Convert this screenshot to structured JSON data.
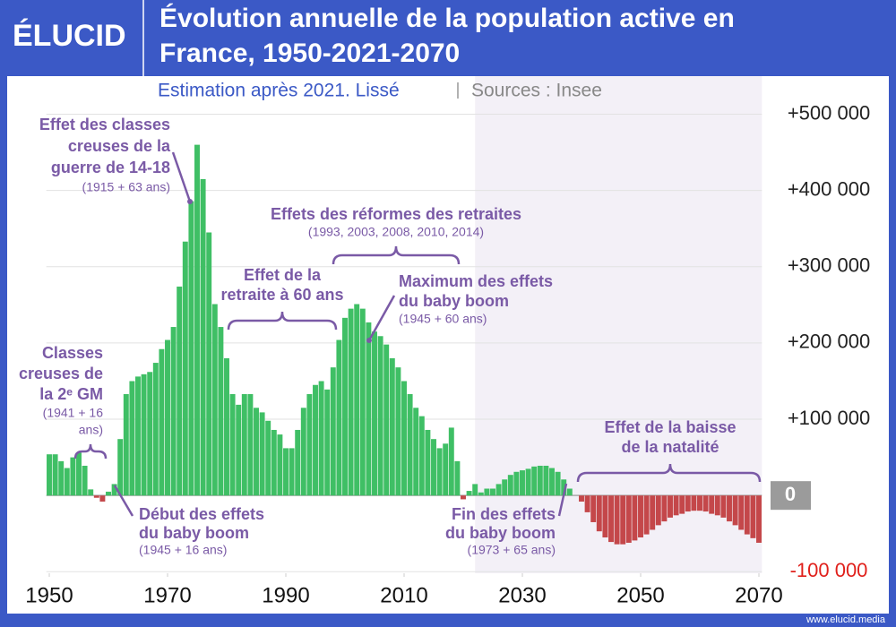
{
  "logo": "ÉLUCID",
  "footer": "www.elucid.media",
  "chart_data": {
    "type": "bar",
    "title_lines": [
      "Évolution annuelle de la population active en",
      "France, 1950-2021-2070"
    ],
    "subtitle": "Estimation après 2021. Lissé",
    "source": "Sources : Insee",
    "x": [
      1950,
      1951,
      1952,
      1953,
      1954,
      1955,
      1956,
      1957,
      1958,
      1959,
      1960,
      1961,
      1962,
      1963,
      1964,
      1965,
      1966,
      1967,
      1968,
      1969,
      1970,
      1971,
      1972,
      1973,
      1974,
      1975,
      1976,
      1977,
      1978,
      1979,
      1980,
      1981,
      1982,
      1983,
      1984,
      1985,
      1986,
      1987,
      1988,
      1989,
      1990,
      1991,
      1992,
      1993,
      1994,
      1995,
      1996,
      1997,
      1998,
      1999,
      2000,
      2001,
      2002,
      2003,
      2004,
      2005,
      2006,
      2007,
      2008,
      2009,
      2010,
      2011,
      2012,
      2013,
      2014,
      2015,
      2016,
      2017,
      2018,
      2019,
      2020,
      2021,
      2022,
      2023,
      2024,
      2025,
      2026,
      2027,
      2028,
      2029,
      2030,
      2031,
      2032,
      2033,
      2034,
      2035,
      2036,
      2037,
      2038,
      2039,
      2040,
      2041,
      2042,
      2043,
      2044,
      2045,
      2046,
      2047,
      2048,
      2049,
      2050,
      2051,
      2052,
      2053,
      2054,
      2055,
      2056,
      2057,
      2058,
      2059,
      2060,
      2061,
      2062,
      2063,
      2064,
      2065,
      2066,
      2067,
      2068,
      2069,
      2070
    ],
    "values": [
      54000,
      54000,
      45000,
      36000,
      50000,
      56000,
      39000,
      8000,
      -3000,
      -8000,
      5000,
      15000,
      74000,
      133000,
      150000,
      156000,
      159000,
      162000,
      174000,
      192000,
      204000,
      221000,
      274000,
      333000,
      386000,
      460000,
      415000,
      345000,
      251000,
      221000,
      180000,
      133000,
      119000,
      133000,
      133000,
      115000,
      109000,
      98000,
      86000,
      80000,
      62000,
      62000,
      86000,
      115000,
      133000,
      145000,
      150000,
      139000,
      168000,
      204000,
      233000,
      245000,
      251000,
      245000,
      227000,
      215000,
      209000,
      198000,
      180000,
      168000,
      150000,
      133000,
      115000,
      104000,
      86000,
      74000,
      62000,
      68000,
      89000,
      45000,
      -5000,
      6000,
      15000,
      4000,
      9000,
      9000,
      15000,
      21000,
      27000,
      31000,
      33000,
      35000,
      38000,
      39000,
      39000,
      36000,
      31000,
      21000,
      9000,
      0,
      -8000,
      -22000,
      -35000,
      -47000,
      -55000,
      -61000,
      -64000,
      -64000,
      -62000,
      -59000,
      -55000,
      -51000,
      -45000,
      -39000,
      -34000,
      -29000,
      -26000,
      -24000,
      -21000,
      -20000,
      -20000,
      -21000,
      -24000,
      -26000,
      -29000,
      -34000,
      -39000,
      -45000,
      -51000,
      -56000,
      -62000
    ],
    "color": "#3fbf65",
    "negative_color": "#c4474a",
    "xlim": [
      1949.5,
      2070.5
    ],
    "xticks": [
      1950,
      1970,
      1990,
      2010,
      2030,
      2050,
      2070
    ],
    "ylim": [
      -102000,
      550000
    ],
    "yticks": [
      {
        "value": -100000,
        "label": "-100 000"
      },
      0,
      {
        "value": 100000,
        "label": "+100 000"
      },
      {
        "value": 200000,
        "label": "+200 000"
      },
      {
        "value": 300000,
        "label": "+300 000"
      },
      {
        "value": 400000,
        "label": "+400 000"
      },
      {
        "value": 500000,
        "label": "+500 000"
      }
    ],
    "grid": true,
    "shaded_from": 2022,
    "annotations": [
      {
        "lines": [
          "Effet des classes",
          "creuses de la",
          "guerre de 14-18"
        ],
        "note": [
          "(1915 + 63 ans)"
        ]
      },
      {
        "lines": [
          "Classes",
          "creuses de",
          "la 2ᵉ GM"
        ],
        "note": [
          "(1941 + 16",
          "ans)"
        ]
      },
      {
        "lines": [
          "Effet de la",
          "retraite à 60 ans"
        ],
        "note": []
      },
      {
        "lines": [
          "Effets des réformes des retraites"
        ],
        "note": [
          "(1993, 2003, 2008, 2010, 2014)"
        ]
      },
      {
        "lines": [
          "Maximum des effets",
          "du baby boom"
        ],
        "note": [
          "(1945 + 60 ans)"
        ]
      },
      {
        "lines": [
          "Début des effets",
          "du baby boom"
        ],
        "note": [
          "(1945 + 16 ans)"
        ]
      },
      {
        "lines": [
          "Fin des effets",
          "du baby boom"
        ],
        "note": [
          "(1973 + 65 ans)"
        ]
      },
      {
        "lines": [
          "Effet de la baisse",
          "de la natalité"
        ],
        "note": []
      }
    ]
  }
}
